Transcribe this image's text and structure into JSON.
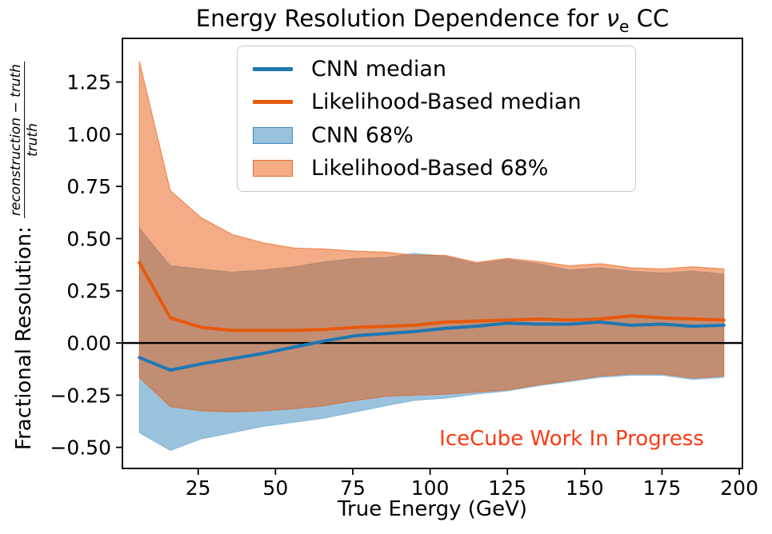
{
  "title": {
    "prefix": "Energy Resolution Dependence for ",
    "nu": "ν",
    "nu_sub": "e",
    "suffix": " CC"
  },
  "axes": {
    "xlabel": "True Energy (GeV)",
    "ylabel_prefix": "Fractional Resolution:",
    "ylabel_frac_num": "reconstruction − truth",
    "ylabel_frac_den": "truth",
    "xlim": [
      0.5,
      201
    ],
    "ylim": [
      -0.601,
      1.459
    ],
    "xticks": {
      "values": [
        25,
        50,
        75,
        100,
        125,
        150,
        175,
        200
      ],
      "labels": [
        "25",
        "50",
        "75",
        "100",
        "125",
        "150",
        "175",
        "200"
      ]
    },
    "yticks": {
      "values": [
        -0.5,
        -0.25,
        0,
        0.25,
        0.5,
        0.75,
        1,
        1.25
      ],
      "labels": [
        "−0.50",
        "−0.25",
        "0.00",
        "0.25",
        "0.50",
        "0.75",
        "1.00",
        "1.25"
      ]
    },
    "zero_line": 0
  },
  "annotation": {
    "text": "IceCube Work In Progress",
    "color": "#fa3a14"
  },
  "legend": {
    "items": [
      {
        "label": "CNN median",
        "type": "line",
        "color": "#1f77b4"
      },
      {
        "label": "Likelihood-Based median",
        "type": "line",
        "color": "#e8590c"
      },
      {
        "label": "CNN 68%",
        "type": "patch",
        "color": "rgba(31,119,180,0.45)",
        "border": "rgba(31,119,180,0.75)"
      },
      {
        "label": "Likelihood-Based 68%",
        "type": "patch",
        "color": "rgba(232,89,12,0.5)",
        "border": "rgba(232,89,12,0.75)"
      }
    ]
  },
  "colors": {
    "cnn_line": "#1f77b4",
    "likelihood_line": "#e8590c",
    "cnn_band": "#1f77b4",
    "likelihood_band": "#e8590c",
    "cnn_band_opacity": 0.45,
    "likelihood_band_opacity": 0.5,
    "zero_line": "#000000"
  },
  "chart_data": {
    "type": "line",
    "title": "Energy Resolution Dependence for νe CC",
    "xlabel": "True Energy (GeV)",
    "ylabel": "Fractional Resolution: (reconstruction − truth)/truth",
    "xlim": [
      0.5,
      201
    ],
    "ylim": [
      -0.601,
      1.459
    ],
    "legend_position": "upper left",
    "grid": false,
    "x": [
      6,
      16,
      26,
      36,
      46,
      56,
      66,
      76,
      86,
      95,
      105,
      115,
      125,
      135,
      145,
      155,
      165,
      175,
      185,
      195
    ],
    "series": [
      {
        "name": "CNN median",
        "type": "line",
        "values": [
          -0.07,
          -0.13,
          -0.1,
          -0.075,
          -0.05,
          -0.02,
          0.01,
          0.035,
          0.045,
          0.055,
          0.07,
          0.08,
          0.095,
          0.09,
          0.09,
          0.1,
          0.085,
          0.09,
          0.08,
          0.085
        ]
      },
      {
        "name": "Likelihood-Based median",
        "type": "line",
        "values": [
          0.385,
          0.12,
          0.075,
          0.06,
          0.06,
          0.06,
          0.065,
          0.075,
          0.08,
          0.085,
          0.1,
          0.105,
          0.11,
          0.115,
          0.11,
          0.115,
          0.13,
          0.12,
          0.115,
          0.11
        ]
      },
      {
        "name": "CNN 68%",
        "type": "band",
        "upper": [
          0.55,
          0.37,
          0.355,
          0.34,
          0.35,
          0.365,
          0.39,
          0.405,
          0.41,
          0.43,
          0.415,
          0.38,
          0.4,
          0.38,
          0.35,
          0.36,
          0.345,
          0.335,
          0.345,
          0.33
        ],
        "lower": [
          -0.43,
          -0.515,
          -0.46,
          -0.43,
          -0.4,
          -0.38,
          -0.36,
          -0.33,
          -0.3,
          -0.275,
          -0.265,
          -0.245,
          -0.23,
          -0.205,
          -0.185,
          -0.165,
          -0.155,
          -0.155,
          -0.175,
          -0.165
        ]
      },
      {
        "name": "Likelihood-Based 68%",
        "type": "band",
        "upper": [
          1.35,
          0.73,
          0.6,
          0.52,
          0.48,
          0.455,
          0.45,
          0.44,
          0.435,
          0.42,
          0.42,
          0.386,
          0.405,
          0.39,
          0.37,
          0.38,
          0.36,
          0.355,
          0.365,
          0.355
        ],
        "lower": [
          -0.165,
          -0.305,
          -0.325,
          -0.33,
          -0.325,
          -0.315,
          -0.3,
          -0.275,
          -0.255,
          -0.25,
          -0.245,
          -0.235,
          -0.225,
          -0.2,
          -0.18,
          -0.158,
          -0.148,
          -0.148,
          -0.168,
          -0.158
        ]
      }
    ],
    "annotations": [
      "IceCube Work In Progress"
    ]
  }
}
